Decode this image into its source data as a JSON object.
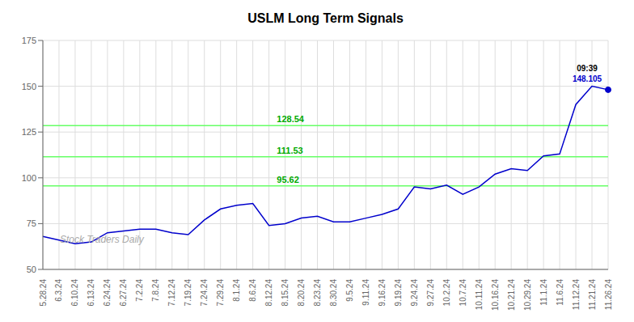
{
  "chart_data": {
    "type": "line",
    "title": "USLM Long Term Signals",
    "categories": [
      "5.28.24",
      "6.3.24",
      "6.10.24",
      "6.13.24",
      "6.24.24",
      "6.27.24",
      "7.2.24",
      "7.8.24",
      "7.12.24",
      "7.19.24",
      "7.24.24",
      "7.29.24",
      "8.1.24",
      "8.6.24",
      "8.12.24",
      "8.15.24",
      "8.20.24",
      "8.23.24",
      "8.30.24",
      "9.5.24",
      "9.11.24",
      "9.16.24",
      "9.19.24",
      "9.24.24",
      "9.27.24",
      "10.2.24",
      "10.7.24",
      "10.11.24",
      "10.16.24",
      "10.21.24",
      "10.29.24",
      "11.1.24",
      "11.6.24",
      "11.12.24",
      "11.21.24",
      "11.26.24"
    ],
    "values": [
      68,
      66,
      64,
      65,
      70,
      71,
      72,
      72,
      70,
      69,
      77,
      83,
      85,
      86,
      74,
      75,
      78,
      79,
      76,
      76,
      78,
      80,
      83,
      95,
      94,
      96,
      91,
      95,
      102,
      105,
      104,
      112,
      113,
      140,
      150,
      148.105
    ],
    "color": "#0000cc",
    "ylim": [
      50,
      175
    ],
    "yticks": [
      50,
      75,
      100,
      125,
      150,
      175
    ],
    "grid": true,
    "reference_lines": [
      {
        "value": 95.62,
        "label": "95.62",
        "color": "#66ff66",
        "label_color": "#00aa00"
      },
      {
        "value": 111.53,
        "label": "111.53",
        "color": "#66ff66",
        "label_color": "#00aa00"
      },
      {
        "value": 128.54,
        "label": "128.54",
        "color": "#66ff66",
        "label_color": "#00aa00"
      }
    ],
    "annotations": [
      {
        "text": "09:39",
        "color": "#000000"
      },
      {
        "text": "148.105",
        "color": "#0000cc"
      }
    ],
    "watermark": {
      "text": "Stock Traders Daily",
      "color": "#aaaaaa"
    }
  }
}
